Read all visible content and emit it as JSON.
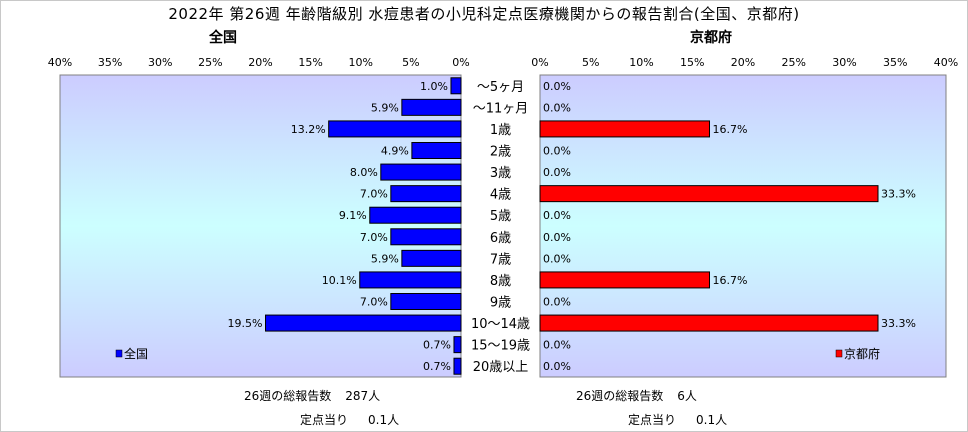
{
  "title": "2022年 第26週 年齢階級別 水痘患者の小児科定点医療機関からの報告割合(全国、京都府)",
  "chart_data": {
    "type": "bar",
    "orientation": "horizontal-butterfly",
    "categories": [
      "～5ヶ月",
      "～11ヶ月",
      "1歳",
      "2歳",
      "3歳",
      "4歳",
      "5歳",
      "6歳",
      "7歳",
      "8歳",
      "9歳",
      "10～14歳",
      "15～19歳",
      "20歳以上"
    ],
    "series": [
      {
        "name": "全国",
        "subtitle": "全国",
        "color": "#0000ff",
        "values": [
          1.0,
          5.9,
          13.2,
          4.9,
          8.0,
          7.0,
          9.1,
          7.0,
          5.9,
          10.1,
          7.0,
          19.5,
          0.7,
          0.7
        ],
        "labels": [
          "1.0%",
          "5.9%",
          "13.2%",
          "4.9%",
          "8.0%",
          "7.0%",
          "9.1%",
          "7.0%",
          "5.9%",
          "10.1%",
          "7.0%",
          "19.5%",
          "0.7%",
          "0.7%"
        ]
      },
      {
        "name": "京都府",
        "subtitle": "京都府",
        "color": "#ff0000",
        "values": [
          0.0,
          0.0,
          16.7,
          0.0,
          0.0,
          33.3,
          0.0,
          0.0,
          0.0,
          16.7,
          0.0,
          33.3,
          0.0,
          0.0
        ],
        "labels": [
          "0.0%",
          "0.0%",
          "16.7%",
          "0.0%",
          "0.0%",
          "33.3%",
          "0.0%",
          "0.0%",
          "0.0%",
          "16.7%",
          "0.0%",
          "33.3%",
          "0.0%",
          "0.0%"
        ]
      }
    ],
    "xlim": [
      0,
      40
    ],
    "ticks": [
      "0%",
      "5%",
      "10%",
      "15%",
      "20%",
      "25%",
      "30%",
      "35%",
      "40%"
    ],
    "grid": false,
    "legend_position": "bottom-left / bottom-right inside plot"
  },
  "footer": {
    "left": {
      "total_label": "26週の総報告数",
      "total_value": "287人",
      "per_label": "定点当り",
      "per_value": "0.1人"
    },
    "right": {
      "total_label": "26週の総報告数",
      "total_value": "6人",
      "per_label": "定点当り",
      "per_value": "0.1人"
    }
  }
}
